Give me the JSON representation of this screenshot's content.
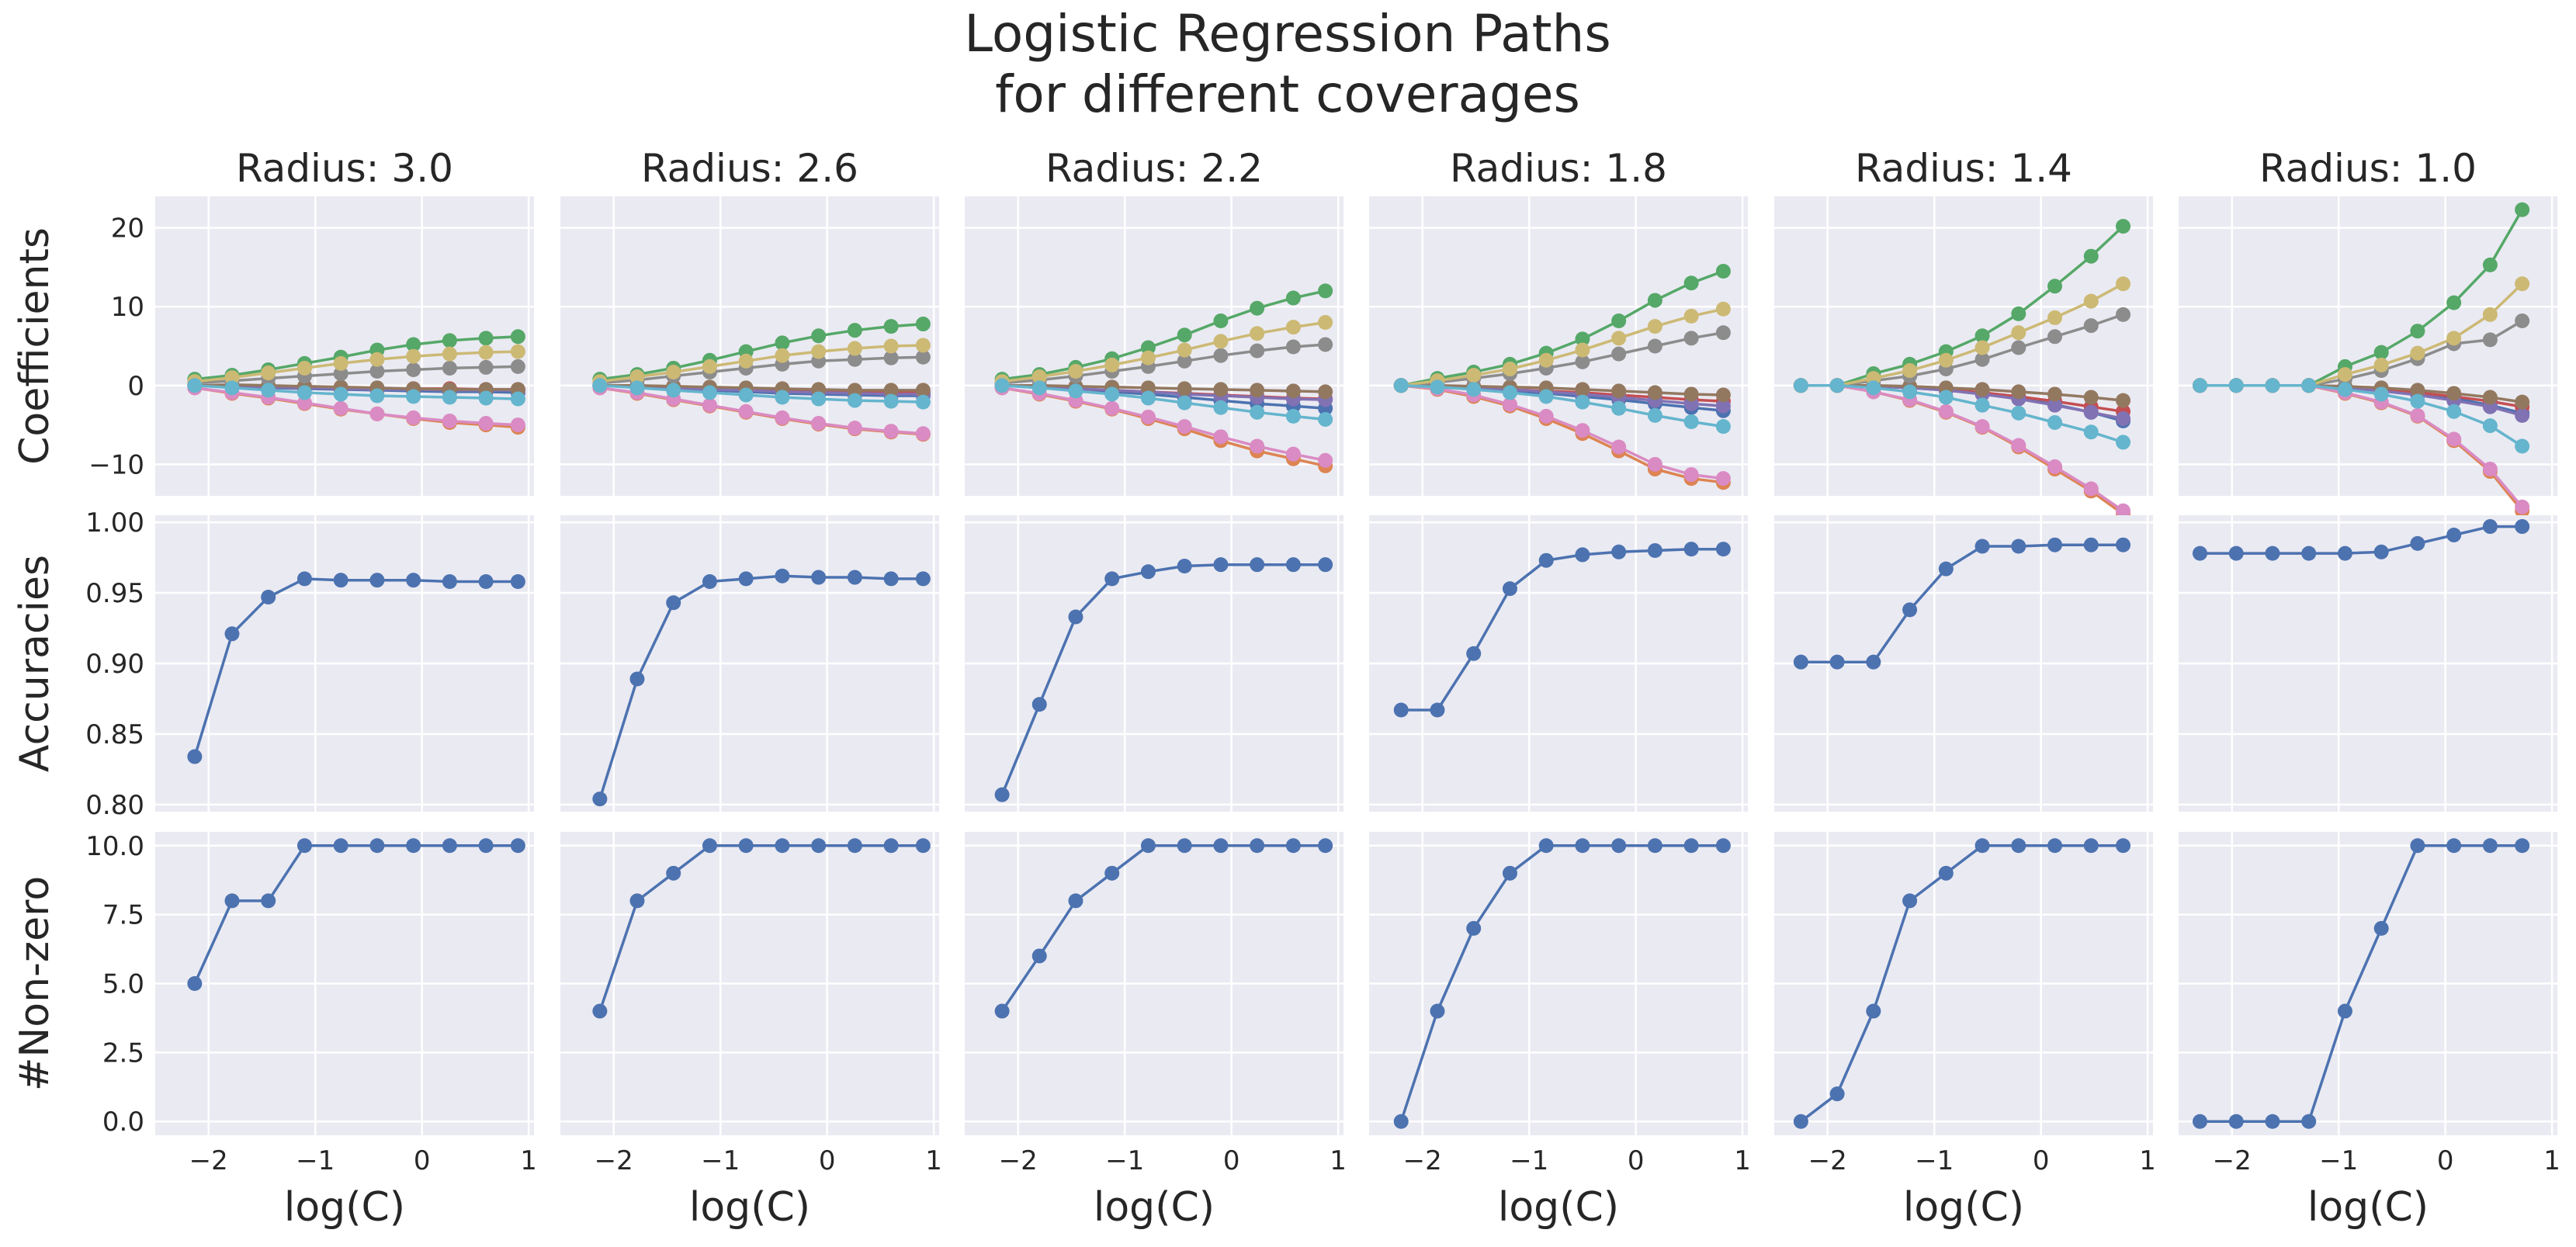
{
  "figure": {
    "title_line1": "Logistic Regression Paths",
    "title_line2": "for different coverages"
  },
  "chart_data": {
    "type": "line",
    "row_ylabels": [
      "Coefficients",
      "Accuracies",
      "#Non-zero"
    ],
    "xlabel": "log(C)",
    "xlim": [
      -2.5,
      1.05
    ],
    "xticks": [
      -2,
      -1,
      0,
      1
    ],
    "xtick_labels": [
      "−2",
      "−1",
      "0",
      "1"
    ],
    "rows": [
      {
        "ylim": [
          -14,
          24
        ],
        "yticks": [
          -10,
          0,
          10,
          20
        ],
        "ytick_labels": [
          "−10",
          "0",
          "10",
          "20"
        ]
      },
      {
        "ylim": [
          0.795,
          1.005
        ],
        "yticks": [
          0.8,
          0.85,
          0.9,
          0.95,
          1.0
        ],
        "ytick_labels": [
          "0.80",
          "0.85",
          "0.90",
          "0.95",
          "1.00"
        ]
      },
      {
        "ylim": [
          -0.5,
          10.5
        ],
        "yticks": [
          0,
          2.5,
          5,
          7.5,
          10
        ],
        "ytick_labels": [
          "0.0",
          "2.5",
          "5.0",
          "7.5",
          "10.0"
        ]
      }
    ],
    "series_colors": [
      "#4c72b0",
      "#dd8452",
      "#55a868",
      "#c44e52",
      "#8172b3",
      "#937860",
      "#da8bc3",
      "#8c8c8c",
      "#ccb974",
      "#64b5cd"
    ],
    "grid": true,
    "panels": [
      {
        "title": "Radius: 3.0",
        "x": [
          -2.13,
          -1.78,
          -1.44,
          -1.1,
          -0.76,
          -0.42,
          -0.08,
          0.26,
          0.6,
          0.9
        ],
        "coefficients": [
          [
            0,
            -0.2,
            -0.3,
            -0.4,
            -0.5,
            -0.6,
            -0.7,
            -0.8,
            -0.8,
            -0.9
          ],
          [
            -0.3,
            -1.0,
            -1.6,
            -2.3,
            -3.0,
            -3.6,
            -4.2,
            -4.7,
            -5.0,
            -5.3
          ],
          [
            0.8,
            1.3,
            2.0,
            2.8,
            3.6,
            4.5,
            5.2,
            5.7,
            6.0,
            6.2
          ],
          [
            0,
            -0.1,
            -0.2,
            -0.3,
            -0.3,
            -0.4,
            -0.4,
            -0.4,
            -0.5,
            -0.5
          ],
          [
            0,
            -0.1,
            -0.2,
            -0.3,
            -0.4,
            -0.5,
            -0.5,
            -0.6,
            -0.6,
            -0.6
          ],
          [
            0,
            0.1,
            0.0,
            -0.1,
            -0.2,
            -0.3,
            -0.4,
            -0.5,
            -0.5,
            -0.5
          ],
          [
            -0.3,
            -0.9,
            -1.5,
            -2.2,
            -2.9,
            -3.6,
            -4.1,
            -4.5,
            -4.8,
            -5.0
          ],
          [
            0.3,
            0.6,
            0.9,
            1.2,
            1.5,
            1.8,
            2.0,
            2.2,
            2.3,
            2.4
          ],
          [
            0.5,
            1.0,
            1.6,
            2.2,
            2.8,
            3.3,
            3.7,
            4.0,
            4.2,
            4.3
          ],
          [
            0,
            -0.3,
            -0.6,
            -0.9,
            -1.1,
            -1.3,
            -1.4,
            -1.5,
            -1.6,
            -1.7
          ]
        ],
        "accuracies": [
          0.834,
          0.921,
          0.947,
          0.96,
          0.959,
          0.959,
          0.959,
          0.958,
          0.958,
          0.958
        ],
        "nonzero": [
          5,
          8,
          8,
          10,
          10,
          10,
          10,
          10,
          10,
          10
        ]
      },
      {
        "title": "Radius: 2.6",
        "x": [
          -2.13,
          -1.78,
          -1.44,
          -1.1,
          -0.76,
          -0.42,
          -0.08,
          0.26,
          0.6,
          0.9
        ],
        "coefficients": [
          [
            0,
            -0.2,
            -0.4,
            -0.6,
            -0.8,
            -1.0,
            -1.1,
            -1.2,
            -1.3,
            -1.3
          ],
          [
            -0.3,
            -1.0,
            -1.8,
            -2.6,
            -3.4,
            -4.2,
            -4.9,
            -5.5,
            -5.9,
            -6.2
          ],
          [
            0.8,
            1.4,
            2.2,
            3.2,
            4.3,
            5.4,
            6.3,
            7.0,
            7.5,
            7.8
          ],
          [
            0,
            -0.2,
            -0.3,
            -0.4,
            -0.5,
            -0.6,
            -0.7,
            -0.8,
            -0.8,
            -0.9
          ],
          [
            0,
            -0.2,
            -0.3,
            -0.5,
            -0.6,
            -0.8,
            -0.9,
            -1.0,
            -1.1,
            -1.1
          ],
          [
            0,
            0.0,
            -0.1,
            -0.2,
            -0.3,
            -0.4,
            -0.5,
            -0.6,
            -0.6,
            -0.6
          ],
          [
            -0.3,
            -0.9,
            -1.7,
            -2.5,
            -3.3,
            -4.1,
            -4.8,
            -5.4,
            -5.8,
            -6.1
          ],
          [
            0.3,
            0.7,
            1.2,
            1.7,
            2.2,
            2.7,
            3.1,
            3.3,
            3.5,
            3.6
          ],
          [
            0.5,
            1.1,
            1.7,
            2.4,
            3.1,
            3.8,
            4.3,
            4.7,
            5.0,
            5.1
          ],
          [
            0,
            -0.3,
            -0.6,
            -0.9,
            -1.2,
            -1.5,
            -1.7,
            -1.9,
            -2.0,
            -2.1
          ]
        ],
        "accuracies": [
          0.804,
          0.889,
          0.943,
          0.958,
          0.96,
          0.962,
          0.961,
          0.961,
          0.96,
          0.96
        ],
        "nonzero": [
          4,
          8,
          9,
          10,
          10,
          10,
          10,
          10,
          10,
          10
        ]
      },
      {
        "title": "Radius: 2.2",
        "x": [
          -2.15,
          -1.8,
          -1.46,
          -1.12,
          -0.78,
          -0.44,
          -0.1,
          0.24,
          0.58,
          0.88
        ],
        "coefficients": [
          [
            0,
            -0.3,
            -0.5,
            -0.8,
            -1.1,
            -1.5,
            -1.9,
            -2.3,
            -2.6,
            -2.9
          ],
          [
            -0.3,
            -1.1,
            -2.0,
            -3.0,
            -4.2,
            -5.5,
            -7.0,
            -8.3,
            -9.3,
            -10.2
          ],
          [
            0.8,
            1.4,
            2.3,
            3.4,
            4.8,
            6.4,
            8.2,
            9.8,
            11.1,
            12.0
          ],
          [
            0,
            -0.2,
            -0.4,
            -0.6,
            -0.8,
            -1.0,
            -1.2,
            -1.4,
            -1.6,
            -1.7
          ],
          [
            0,
            -0.2,
            -0.4,
            -0.6,
            -0.8,
            -1.1,
            -1.3,
            -1.5,
            -1.7,
            -1.8
          ],
          [
            0,
            0.0,
            -0.1,
            -0.2,
            -0.3,
            -0.4,
            -0.5,
            -0.6,
            -0.7,
            -0.8
          ],
          [
            -0.3,
            -1.0,
            -1.9,
            -2.9,
            -4.0,
            -5.2,
            -6.5,
            -7.7,
            -8.7,
            -9.5
          ],
          [
            0.3,
            0.7,
            1.2,
            1.8,
            2.4,
            3.1,
            3.8,
            4.4,
            4.9,
            5.2
          ],
          [
            0.5,
            1.1,
            1.8,
            2.6,
            3.5,
            4.5,
            5.6,
            6.6,
            7.4,
            8.0
          ],
          [
            0,
            -0.3,
            -0.7,
            -1.1,
            -1.6,
            -2.2,
            -2.8,
            -3.4,
            -3.9,
            -4.3
          ]
        ],
        "accuracies": [
          0.807,
          0.871,
          0.933,
          0.96,
          0.965,
          0.969,
          0.97,
          0.97,
          0.97,
          0.97
        ],
        "nonzero": [
          4,
          6,
          8,
          9,
          10,
          10,
          10,
          10,
          10,
          10
        ]
      },
      {
        "title": "Radius: 1.8",
        "x": [
          -2.2,
          -1.86,
          -1.52,
          -1.18,
          -0.84,
          -0.5,
          -0.16,
          0.18,
          0.52,
          0.82
        ],
        "coefficients": [
          [
            0,
            -0.2,
            -0.4,
            -0.7,
            -1.0,
            -1.4,
            -1.8,
            -2.3,
            -2.8,
            -3.2
          ],
          [
            0,
            -0.5,
            -1.4,
            -2.6,
            -4.2,
            -6.1,
            -8.3,
            -10.6,
            -11.8,
            -12.3
          ],
          [
            0,
            0.9,
            1.7,
            2.7,
            4.1,
            5.9,
            8.2,
            10.8,
            13.0,
            14.5
          ],
          [
            0,
            -0.1,
            -0.3,
            -0.5,
            -0.7,
            -0.9,
            -1.2,
            -1.5,
            -1.8,
            -2.0
          ],
          [
            0,
            -0.1,
            -0.3,
            -0.5,
            -0.8,
            -1.1,
            -1.5,
            -1.9,
            -2.3,
            -2.6
          ],
          [
            0,
            0.0,
            -0.1,
            -0.2,
            -0.3,
            -0.5,
            -0.7,
            -0.9,
            -1.1,
            -1.2
          ],
          [
            0,
            -0.4,
            -1.2,
            -2.4,
            -3.9,
            -5.7,
            -7.8,
            -10.0,
            -11.3,
            -11.8
          ],
          [
            0,
            0.4,
            0.9,
            1.5,
            2.2,
            3.0,
            4.0,
            5.0,
            6.0,
            6.7
          ],
          [
            0,
            0.6,
            1.3,
            2.1,
            3.2,
            4.5,
            6.0,
            7.5,
            8.8,
            9.7
          ],
          [
            0,
            -0.2,
            -0.5,
            -0.9,
            -1.4,
            -2.1,
            -2.9,
            -3.8,
            -4.6,
            -5.2
          ]
        ],
        "accuracies": [
          0.867,
          0.867,
          0.907,
          0.953,
          0.973,
          0.977,
          0.979,
          0.98,
          0.981,
          0.981
        ],
        "nonzero": [
          0,
          4,
          7,
          9,
          10,
          10,
          10,
          10,
          10,
          10
        ]
      },
      {
        "title": "Radius: 1.4",
        "x": [
          -2.25,
          -1.91,
          -1.57,
          -1.23,
          -0.89,
          -0.55,
          -0.21,
          0.13,
          0.47,
          0.77
        ],
        "coefficients": [
          [
            0,
            0,
            -0.1,
            -0.3,
            -0.6,
            -1.0,
            -1.6,
            -2.4,
            -3.4,
            -4.5
          ],
          [
            0,
            0,
            -0.8,
            -1.9,
            -3.4,
            -5.3,
            -7.8,
            -10.6,
            -13.4,
            -16.3
          ],
          [
            0,
            0,
            1.5,
            2.7,
            4.3,
            6.3,
            9.1,
            12.6,
            16.4,
            20.2
          ],
          [
            0,
            0,
            -0.1,
            -0.3,
            -0.5,
            -0.9,
            -1.4,
            -2.0,
            -2.7,
            -3.3
          ],
          [
            0,
            0,
            -0.1,
            -0.3,
            -0.6,
            -1.1,
            -1.7,
            -2.5,
            -3.4,
            -4.2
          ],
          [
            0,
            0,
            0.0,
            -0.1,
            -0.3,
            -0.5,
            -0.8,
            -1.1,
            -1.5,
            -1.9
          ],
          [
            0,
            0,
            -0.8,
            -1.8,
            -3.3,
            -5.2,
            -7.6,
            -10.3,
            -13.1,
            -15.9
          ],
          [
            0,
            0,
            0.6,
            1.2,
            2.1,
            3.3,
            4.8,
            6.2,
            7.6,
            9.0
          ],
          [
            0,
            0,
            0.9,
            1.9,
            3.2,
            4.8,
            6.7,
            8.6,
            10.7,
            12.9
          ],
          [
            0,
            0,
            -0.3,
            -0.8,
            -1.5,
            -2.5,
            -3.5,
            -4.7,
            -5.9,
            -7.2
          ]
        ],
        "accuracies": [
          0.901,
          0.901,
          0.901,
          0.938,
          0.967,
          0.983,
          0.983,
          0.984,
          0.984,
          0.984
        ],
        "nonzero": [
          0,
          1,
          4,
          8,
          9,
          10,
          10,
          10,
          10,
          10
        ]
      },
      {
        "title": "Radius: 1.0",
        "x": [
          -2.3,
          -1.96,
          -1.62,
          -1.28,
          -0.94,
          -0.6,
          -0.26,
          0.08,
          0.42,
          0.72
        ],
        "coefficients": [
          [
            0,
            0,
            0,
            0,
            -0.3,
            -0.6,
            -1.0,
            -1.6,
            -2.5,
            -3.5
          ],
          [
            0,
            0,
            0,
            0,
            -1.0,
            -2.2,
            -3.9,
            -7.0,
            -10.9,
            -15.9
          ],
          [
            0,
            0,
            0,
            0,
            2.4,
            4.2,
            6.9,
            10.5,
            15.3,
            22.3
          ],
          [
            0,
            0,
            0,
            0,
            -0.2,
            -0.5,
            -0.9,
            -1.4,
            -2.0,
            -2.7
          ],
          [
            0,
            0,
            0,
            0,
            -0.3,
            -0.7,
            -1.2,
            -1.9,
            -2.7,
            -3.8
          ],
          [
            0,
            0,
            0,
            0,
            -0.1,
            -0.3,
            -0.6,
            -1.0,
            -1.5,
            -2.1
          ],
          [
            0,
            0,
            0,
            0,
            -0.9,
            -2.1,
            -3.8,
            -6.8,
            -10.6,
            -15.4
          ],
          [
            0,
            0,
            0,
            0,
            0.8,
            1.9,
            3.4,
            5.3,
            5.8,
            8.2
          ],
          [
            0,
            0,
            0,
            0,
            1.4,
            2.6,
            4.1,
            6.0,
            9.0,
            12.9
          ],
          [
            0,
            0,
            0,
            0,
            -0.5,
            -1.1,
            -2.0,
            -3.3,
            -5.1,
            -7.7
          ]
        ],
        "accuracies": [
          0.978,
          0.978,
          0.978,
          0.978,
          0.978,
          0.979,
          0.985,
          0.991,
          0.997,
          0.997
        ],
        "nonzero": [
          0,
          0,
          0,
          0,
          4,
          7,
          10,
          10,
          10,
          10
        ]
      }
    ]
  }
}
